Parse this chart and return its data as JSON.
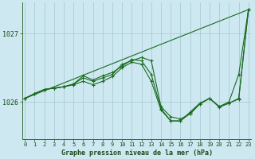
{
  "background_color": "#cde8f0",
  "grid_color": "#aaccd8",
  "line_color": "#1a6b20",
  "title": "Graphe pression niveau de la mer (hPa)",
  "xlim": [
    -0.3,
    23.3
  ],
  "ylim": [
    1025.45,
    1027.45
  ],
  "yticks": [
    1026,
    1027
  ],
  "xticks": [
    0,
    1,
    2,
    3,
    4,
    5,
    6,
    7,
    8,
    9,
    10,
    11,
    12,
    13,
    14,
    15,
    16,
    17,
    18,
    19,
    20,
    21,
    22,
    23
  ],
  "series": [
    {
      "x": [
        0,
        23
      ],
      "y": [
        1026.05,
        1027.35
      ],
      "has_markers": false
    },
    {
      "x": [
        0,
        1,
        2,
        3,
        4,
        5,
        6,
        7,
        8,
        9,
        10,
        11,
        12,
        13,
        14,
        15,
        16,
        17,
        18,
        19,
        20,
        21,
        22,
        23
      ],
      "y": [
        1026.05,
        1026.12,
        1026.18,
        1026.2,
        1026.22,
        1026.26,
        1026.35,
        1026.3,
        1026.35,
        1026.4,
        1026.55,
        1026.6,
        1026.65,
        1026.6,
        1025.93,
        1025.78,
        1025.75,
        1025.82,
        1025.97,
        1026.05,
        1025.93,
        1026.0,
        1026.4,
        1027.35
      ],
      "has_markers": true
    },
    {
      "x": [
        0,
        1,
        2,
        3,
        4,
        5,
        6,
        7,
        8,
        9,
        10,
        11,
        12,
        13,
        14,
        15,
        16,
        17,
        18,
        19,
        20,
        21,
        22,
        23
      ],
      "y": [
        1026.05,
        1026.12,
        1026.18,
        1026.2,
        1026.22,
        1026.26,
        1026.38,
        1026.32,
        1026.38,
        1026.43,
        1026.52,
        1026.62,
        1026.6,
        1026.4,
        1025.9,
        1025.72,
        1025.72,
        1025.85,
        1025.98,
        1026.05,
        1025.93,
        1025.98,
        1026.05,
        1027.35
      ],
      "has_markers": true
    },
    {
      "x": [
        0,
        1,
        2,
        3,
        4,
        5,
        6,
        7,
        8,
        9,
        10,
        11,
        12,
        13,
        14,
        15,
        16,
        17,
        18,
        19,
        20,
        21,
        22,
        23
      ],
      "y": [
        1026.05,
        1026.12,
        1026.18,
        1026.2,
        1026.22,
        1026.25,
        1026.3,
        1026.25,
        1026.3,
        1026.37,
        1026.5,
        1026.58,
        1026.55,
        1026.3,
        1025.88,
        1025.72,
        1025.72,
        1025.83,
        1025.97,
        1026.05,
        1025.92,
        1025.98,
        1026.04,
        1027.35
      ],
      "has_markers": true
    }
  ]
}
